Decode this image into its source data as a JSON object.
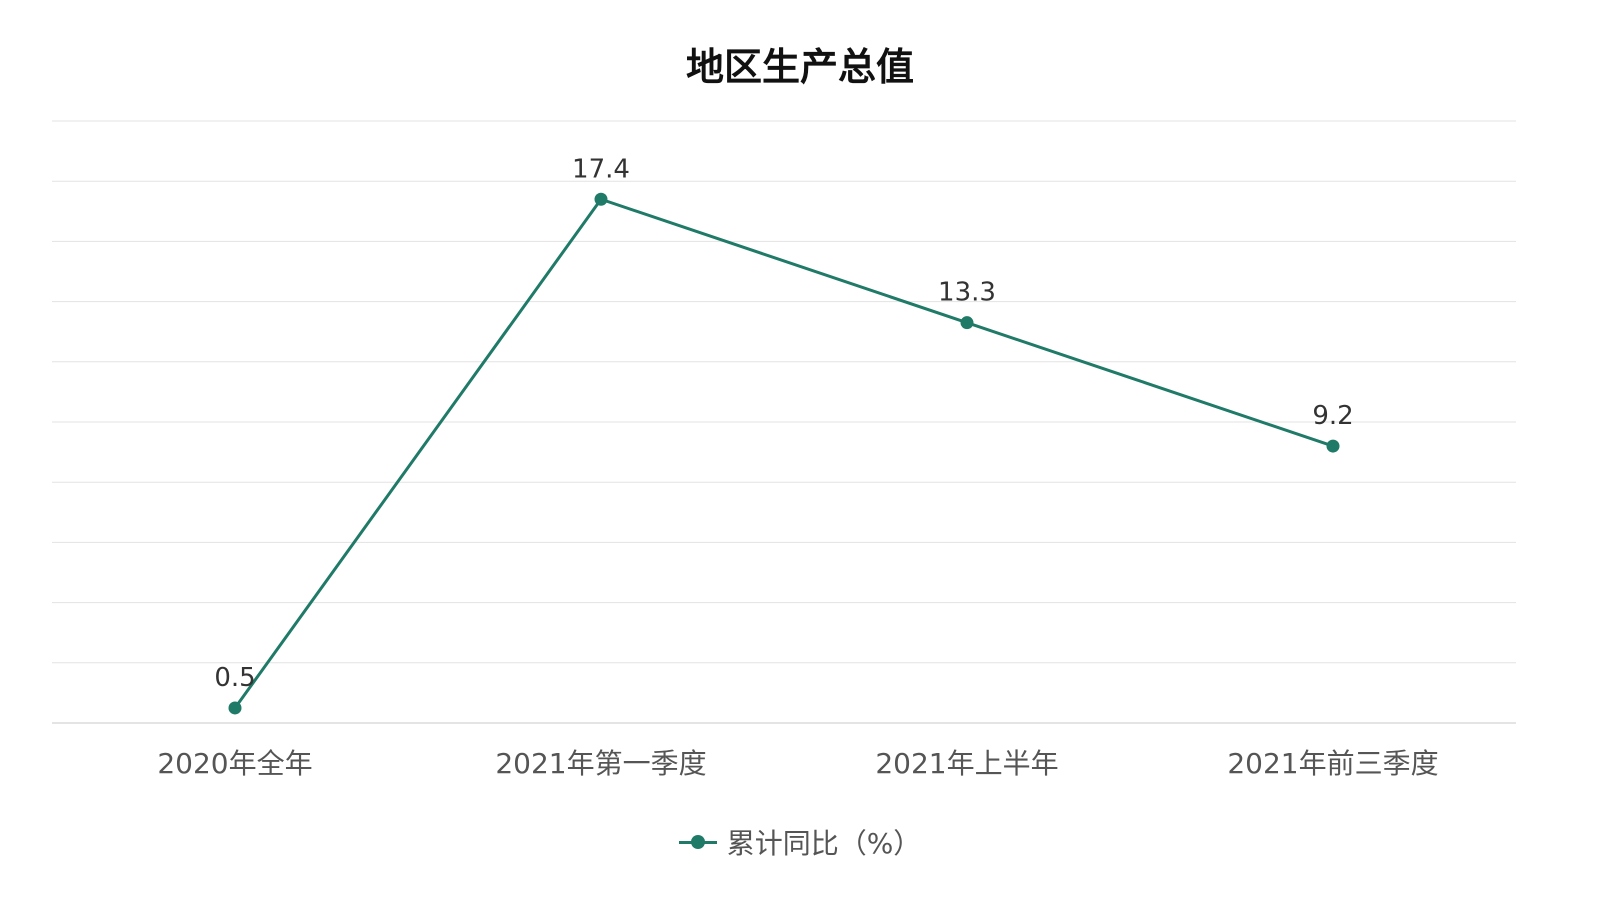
{
  "chart_data": {
    "type": "line",
    "title": "地区生产总值",
    "categories": [
      "2020年全年",
      "2021年第一季度",
      "2021年上半年",
      "2021年前三季度"
    ],
    "series": [
      {
        "name": "累计同比（%）",
        "values": [
          0.5,
          17.4,
          13.3,
          9.2
        ],
        "color": "#1f7a68"
      }
    ],
    "ylim": [
      0,
      20
    ],
    "grid": true,
    "legend_position": "bottom"
  }
}
